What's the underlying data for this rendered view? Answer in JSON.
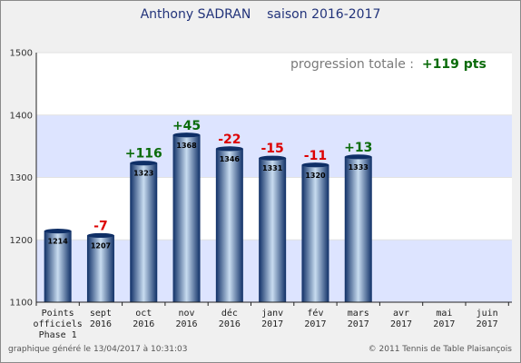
{
  "title_player": "Anthony SADRAN",
  "title_season": "saison 2016-2017",
  "annotation": {
    "label": "progression totale :",
    "value": "+119 pts",
    "label_color": "#7a7a7a",
    "value_color": "#0a6b0a"
  },
  "footer": {
    "left": "graphique généré le 13/04/2017 à 10:31:03",
    "right": "© 2011 Tennis de Table Plaisançois"
  },
  "colors": {
    "band": "#dde4ff",
    "bar_dark": "#0f2f66",
    "bar_light": "#c8dcf0",
    "positive": "#0a6b0a",
    "negative": "#dd0000"
  },
  "chart_data": {
    "type": "bar",
    "title": "Anthony SADRAN    saison 2016-2017",
    "ylim": [
      1100,
      1500
    ],
    "yticks": [
      1100,
      1200,
      1300,
      1400,
      1500
    ],
    "grid": true,
    "categories": [
      [
        "Points",
        "officiels",
        "Phase 1"
      ],
      [
        "sept",
        "2016"
      ],
      [
        "oct",
        "2016"
      ],
      [
        "nov",
        "2016"
      ],
      [
        "déc",
        "2016"
      ],
      [
        "janv",
        "2017"
      ],
      [
        "fév",
        "2017"
      ],
      [
        "mars",
        "2017"
      ],
      [
        "avr",
        "2017"
      ],
      [
        "mai",
        "2017"
      ],
      [
        "juin",
        "2017"
      ]
    ],
    "values": [
      1214,
      1207,
      1323,
      1368,
      1346,
      1331,
      1320,
      1333,
      null,
      null,
      null
    ],
    "value_labels": [
      "1214",
      "1207",
      "1323",
      "1368",
      "1346",
      "1331",
      "1320",
      "1333",
      "",
      "",
      ""
    ],
    "changes": [
      "",
      "-7",
      "+116",
      "+45",
      "-22",
      "-15",
      "-11",
      "+13",
      "",
      "",
      ""
    ]
  }
}
